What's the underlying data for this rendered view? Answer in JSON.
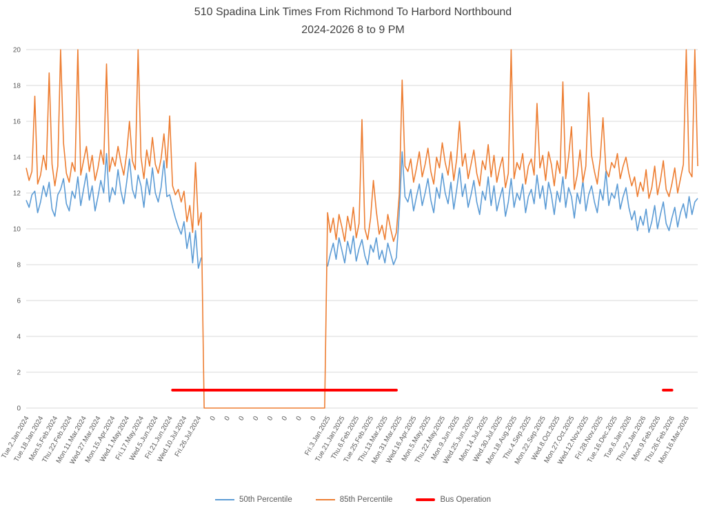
{
  "title": {
    "line1": "510 Spadina Link Times From Richmond To Harbord Northbound",
    "line2": "2024-2026 8 to 9 PM"
  },
  "colors": {
    "series_50th": "#5B9BD5",
    "series_85th": "#ED7D31",
    "bus_operation": "#FF0000",
    "gridline": "#D9D9D9",
    "axis_text": "#595959",
    "title_text": "#3F3F3F"
  },
  "chart_data": {
    "type": "line",
    "title": "510 Spadina Link Times From Richmond To Harbord Northbound 2024-2026 8 to 9 PM",
    "xlabel": "",
    "ylabel": "",
    "grid": "horizontal",
    "legend_position": "bottom",
    "y_axis": {
      "min": 0,
      "max": 20,
      "tick_step": 2,
      "ticks": [
        0,
        2,
        4,
        6,
        8,
        10,
        12,
        14,
        16,
        18,
        20
      ]
    },
    "points_per_tick": 5,
    "x_tick_labels": [
      "Tue.2.Jan.2024",
      "Tue.18.Jan.2024",
      "Mon.5.Feb.2024",
      "Thu.22.Feb.2024",
      "Mon.11.Mar.2024",
      "Wed.27.Mar.2024",
      "Mon.15.Apr.2024",
      "Wed.1.May.2024",
      "Fri.17.May.2024",
      "Wed.5.Jun.2024",
      "Fri.21.Jun.2024",
      "Wed.10.Jul.2024",
      "Fri.26.Jul.2024",
      "0",
      "0",
      "0",
      "0",
      "0",
      "0",
      "0",
      "0",
      "Fri.3.Jan.2025",
      "Tue.21.Jan.2025",
      "Thu.6.Feb.2025",
      "Tue.25.Feb.2025",
      "Thu.13.Mar.2025",
      "Mon.31.Mar.2025",
      "Wed.16.Apr.2025",
      "Mon.5.May.2025",
      "Thu.22.May.2025",
      "Mon.9.Jun.2025",
      "Wed.25.Jun.2025",
      "Mon.14.Jul.2025",
      "Wed.30.Jul.2025",
      "Mon.18.Aug.2025",
      "Thu.4.Sep.2025",
      "Mon.22.Sep.2025",
      "Wed.8.Oct.2025",
      "Mon.27.Oct.2025",
      "Wed.12.Nov.2025",
      "Fri.28.Nov.2025",
      "Tue.16.Dec.2025",
      "Tue.6.Jan.2026",
      "Thu.22.Jan.2026",
      "Mon.9.Feb.2026",
      "Thu.26.Feb.2026",
      "Mon.16.Mar.2026"
    ],
    "series": [
      {
        "name": "50th Percentile",
        "color": "#5B9BD5",
        "values": [
          11.6,
          11.2,
          11.9,
          12.1,
          10.9,
          11.5,
          12.4,
          11.8,
          12.6,
          11.1,
          10.7,
          11.9,
          12.2,
          12.8,
          11.4,
          11.0,
          12.1,
          11.7,
          12.9,
          11.3,
          12.2,
          13.1,
          11.6,
          12.4,
          11.0,
          11.8,
          12.7,
          12.0,
          14.2,
          11.5,
          12.3,
          11.9,
          13.3,
          12.1,
          11.4,
          12.6,
          13.9,
          12.2,
          11.7,
          13.0,
          12.4,
          11.2,
          12.8,
          11.9,
          13.4,
          12.0,
          11.5,
          12.3,
          13.8,
          11.8,
          11.9,
          11.2,
          10.6,
          10.1,
          9.7,
          10.4,
          8.9,
          9.8,
          8.1,
          9.9,
          7.8,
          8.4,
          null,
          null,
          null,
          null,
          null,
          null,
          null,
          null,
          null,
          null,
          null,
          null,
          null,
          null,
          null,
          null,
          null,
          null,
          null,
          null,
          null,
          null,
          null,
          null,
          null,
          null,
          null,
          null,
          null,
          null,
          null,
          null,
          null,
          null,
          null,
          null,
          null,
          null,
          null,
          null,
          null,
          null,
          null,
          7.9,
          8.6,
          9.2,
          8.3,
          9.5,
          8.8,
          8.1,
          9.3,
          8.6,
          9.6,
          8.2,
          8.9,
          9.4,
          8.5,
          8.0,
          9.1,
          8.7,
          9.5,
          8.3,
          8.8,
          8.1,
          9.2,
          8.6,
          8.0,
          8.4,
          10.9,
          14.3,
          11.8,
          11.5,
          12.2,
          11.0,
          11.8,
          12.5,
          11.3,
          12.0,
          12.8,
          11.6,
          10.9,
          12.3,
          11.7,
          13.1,
          12.0,
          11.4,
          12.6,
          11.1,
          12.2,
          13.4,
          11.8,
          12.5,
          11.2,
          11.9,
          12.7,
          11.5,
          10.8,
          12.1,
          11.6,
          12.9,
          11.3,
          12.4,
          11.0,
          11.7,
          12.3,
          10.7,
          11.5,
          12.8,
          11.2,
          12.0,
          11.6,
          12.5,
          10.9,
          11.8,
          12.2,
          11.4,
          13.0,
          11.7,
          12.4,
          11.1,
          12.6,
          11.9,
          10.8,
          12.1,
          11.5,
          12.9,
          11.2,
          12.3,
          11.8,
          10.6,
          12.0,
          11.4,
          12.7,
          11.0,
          11.9,
          12.4,
          11.5,
          10.9,
          12.2,
          11.6,
          13.2,
          11.3,
          12.0,
          11.7,
          12.5,
          11.1,
          11.8,
          12.3,
          11.2,
          10.5,
          11.0,
          9.9,
          10.7,
          10.2,
          11.1,
          9.8,
          10.4,
          11.3,
          10.0,
          10.8,
          11.5,
          10.3,
          9.9,
          10.6,
          11.2,
          10.1,
          10.9,
          11.4,
          10.6,
          11.8,
          10.8,
          11.5,
          11.7
        ]
      },
      {
        "name": "85th Percentile",
        "color": "#ED7D31",
        "values": [
          13.4,
          12.7,
          13.2,
          17.4,
          12.5,
          13.0,
          14.1,
          13.3,
          18.7,
          13.6,
          12.4,
          13.5,
          20.0,
          14.8,
          13.1,
          12.6,
          13.7,
          13.2,
          20.0,
          13.0,
          13.8,
          14.6,
          13.2,
          14.1,
          12.7,
          13.4,
          14.4,
          13.6,
          19.2,
          13.2,
          14.0,
          13.5,
          14.6,
          13.7,
          13.0,
          14.2,
          16.0,
          13.8,
          13.3,
          20.0,
          14.0,
          12.8,
          14.4,
          13.5,
          15.1,
          13.6,
          13.1,
          13.9,
          15.3,
          13.4,
          16.3,
          12.4,
          11.9,
          12.2,
          11.5,
          12.1,
          10.4,
          11.3,
          9.8,
          13.7,
          10.2,
          10.9,
          0,
          0,
          0,
          0,
          0,
          0,
          0,
          0,
          0,
          0,
          0,
          0,
          0,
          0,
          0,
          0,
          0,
          0,
          0,
          0,
          0,
          0,
          0,
          0,
          0,
          0,
          0,
          0,
          0,
          0,
          0,
          0,
          0,
          0,
          0,
          0,
          0,
          0,
          0,
          0,
          0,
          0,
          0,
          10.9,
          9.8,
          10.6,
          9.4,
          10.8,
          10.1,
          9.3,
          10.7,
          9.9,
          11.2,
          9.5,
          10.3,
          16.1,
          10.0,
          9.4,
          10.6,
          12.7,
          11.0,
          9.7,
          10.2,
          9.4,
          10.8,
          10.0,
          9.3,
          9.8,
          11.9,
          18.3,
          13.5,
          13.2,
          13.9,
          12.6,
          13.4,
          14.3,
          12.9,
          13.6,
          14.5,
          13.2,
          12.5,
          14.0,
          13.4,
          14.8,
          13.7,
          13.0,
          14.3,
          12.7,
          13.9,
          16.0,
          13.5,
          14.2,
          12.8,
          13.6,
          14.4,
          13.1,
          12.4,
          13.8,
          13.3,
          14.7,
          12.9,
          14.1,
          12.6,
          13.4,
          14.0,
          12.3,
          13.1,
          20.0,
          12.8,
          13.7,
          13.3,
          14.2,
          12.5,
          13.5,
          13.9,
          13.0,
          17.0,
          13.4,
          14.1,
          12.7,
          14.3,
          13.6,
          12.4,
          13.8,
          13.1,
          18.2,
          12.8,
          14.0,
          15.7,
          12.2,
          13.0,
          14.4,
          12.6,
          13.5,
          17.6,
          14.1,
          13.2,
          12.5,
          13.9,
          16.2,
          13.3,
          12.9,
          13.7,
          13.4,
          14.2,
          12.8,
          13.5,
          14.0,
          13.1,
          12.4,
          12.9,
          11.8,
          12.6,
          12.1,
          13.3,
          11.7,
          12.3,
          13.5,
          11.9,
          12.7,
          13.8,
          12.2,
          11.8,
          12.5,
          13.4,
          12.0,
          12.8,
          13.6,
          20.0,
          13.2,
          12.9,
          20.0,
          13.5
        ]
      },
      {
        "name": "Bus Operation",
        "color": "#FF0000",
        "type": "segments",
        "value": 1,
        "segments": [
          [
            51,
            129
          ],
          [
            222,
            225
          ]
        ]
      }
    ]
  }
}
